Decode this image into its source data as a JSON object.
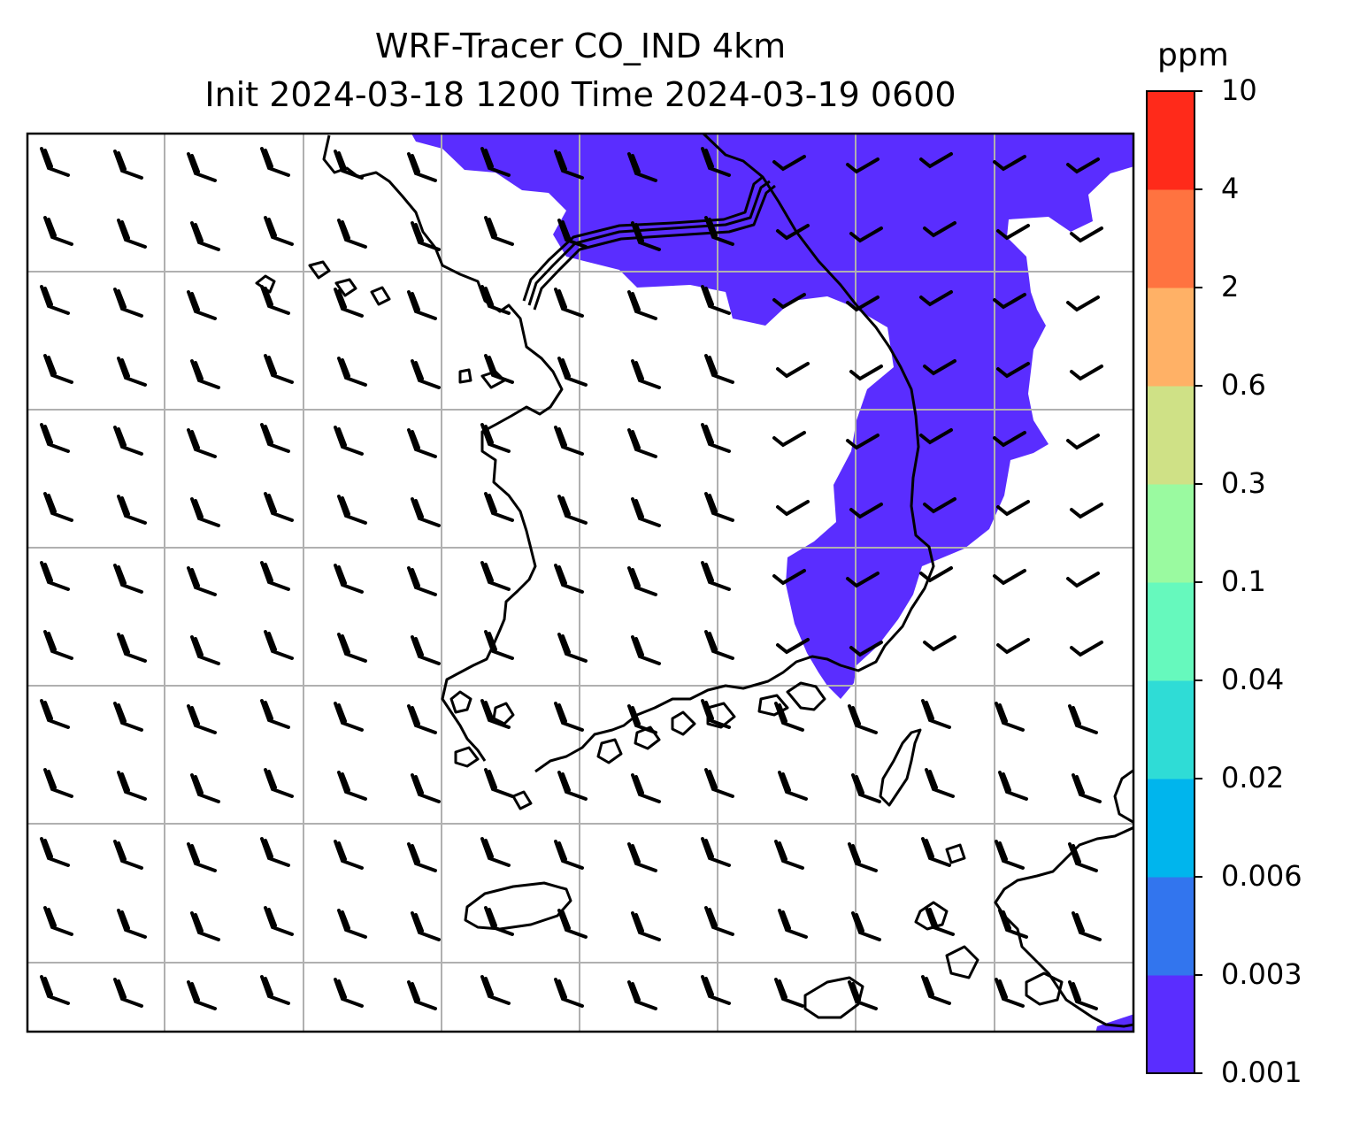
{
  "title": {
    "line1": "WRF-Tracer CO_IND 4km",
    "line2": "Init 2024-03-18 1200 Time 2024-03-19 0600"
  },
  "colorbar": {
    "unit": "ppm",
    "levels": [
      "0.001",
      "0.003",
      "0.006",
      "0.02",
      "0.04",
      "0.1",
      "0.3",
      "0.6",
      "2",
      "4",
      "10"
    ],
    "colors": [
      "#5a2dff",
      "#3275ee",
      "#00b5ed",
      "#2fdcd6",
      "#66f9bd",
      "#9afaa0",
      "#cfe186",
      "#ffb166",
      "#ff7340",
      "#ff2a1a"
    ]
  },
  "map": {
    "plume_color": "#5a2dff",
    "coastline_color": "#000000",
    "grid_color": "#b0b0b0"
  }
}
